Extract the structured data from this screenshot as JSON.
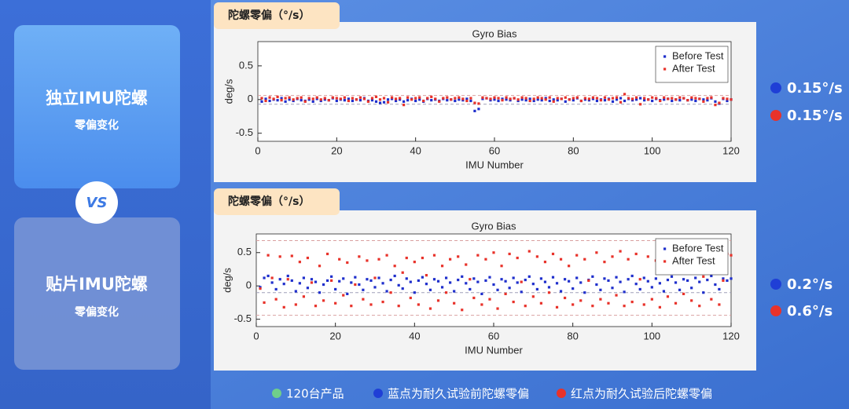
{
  "cards": [
    {
      "title": "独立IMU陀螺",
      "subtitle": "零偏变化"
    },
    {
      "title": "贴片IMU陀螺",
      "subtitle": "零偏变化"
    }
  ],
  "vs": "VS",
  "chart_data": [
    {
      "type": "scatter",
      "label": "陀螺零偏（°/s）",
      "title": "Gyro Bias",
      "xlabel": "IMU Number",
      "ylabel": "deg/s",
      "xlim": [
        0,
        120
      ],
      "xticks": [
        0,
        20,
        40,
        60,
        80,
        100,
        120
      ],
      "ylim": [
        -0.62,
        0.86
      ],
      "yticks": [
        -0.5,
        0,
        0.5
      ],
      "hlines": [
        {
          "value": 0.06,
          "color": "#d9a0a0"
        },
        {
          "value": -0.07,
          "color": "#a0a0b8"
        }
      ],
      "legend": "upper right",
      "x": [
        1,
        2,
        3,
        4,
        5,
        6,
        7,
        8,
        9,
        10,
        11,
        12,
        13,
        14,
        15,
        16,
        17,
        18,
        19,
        20,
        21,
        22,
        23,
        24,
        25,
        26,
        27,
        28,
        29,
        30,
        31,
        32,
        33,
        34,
        35,
        36,
        37,
        38,
        39,
        40,
        41,
        42,
        43,
        44,
        45,
        46,
        47,
        48,
        49,
        50,
        51,
        52,
        53,
        54,
        55,
        56,
        57,
        58,
        59,
        60,
        61,
        62,
        63,
        64,
        65,
        66,
        67,
        68,
        69,
        70,
        71,
        72,
        73,
        74,
        75,
        76,
        77,
        78,
        79,
        80,
        81,
        82,
        83,
        84,
        85,
        86,
        87,
        88,
        89,
        90,
        91,
        92,
        93,
        94,
        95,
        96,
        97,
        98,
        99,
        100,
        101,
        102,
        103,
        104,
        105,
        106,
        107,
        108,
        109,
        110,
        111,
        112,
        113,
        114,
        115,
        116,
        117,
        118,
        119,
        120
      ],
      "series": [
        {
          "name": "Before Test",
          "color": "#1f2fcc",
          "values": [
            -0.03,
            0.01,
            -0.02,
            0.0,
            -0.01,
            0.02,
            -0.03,
            0.0,
            -0.02,
            0.01,
            -0.01,
            -0.02,
            0.0,
            -0.03,
            0.01,
            -0.02,
            0.0,
            -0.01,
            0.02,
            -0.02,
            0.0,
            -0.01,
            0.01,
            -0.02,
            0.0,
            -0.01,
            0.02,
            -0.02,
            -0.01,
            -0.03,
            -0.05,
            -0.04,
            0.0,
            0.01,
            -0.02,
            0.0,
            -0.03,
            -0.01,
            0.01,
            -0.02,
            0.0,
            -0.03,
            0.01,
            -0.01,
            0.0,
            -0.02,
            0.01,
            -0.01,
            0.0,
            -0.02,
            0.0,
            -0.01,
            0.01,
            -0.02,
            -0.17,
            -0.14,
            0.01,
            0.02,
            -0.01,
            0.0,
            -0.02,
            0.01,
            0.0,
            -0.01,
            0.02,
            -0.02,
            0.0,
            -0.01,
            0.01,
            -0.02,
            0.0,
            -0.01,
            0.02,
            -0.02,
            0.0,
            -0.01,
            0.01,
            -0.03,
            0.0,
            -0.01,
            0.02,
            -0.02,
            0.0,
            -0.01,
            0.01,
            -0.02,
            0.0,
            -0.01,
            0.01,
            -0.03,
            0.0,
            0.02,
            -0.02,
            0.01,
            -0.01,
            0.0,
            0.02,
            -0.01,
            0.0,
            -0.02,
            0.01,
            -0.01,
            0.0,
            0.01,
            -0.02,
            0.0,
            -0.01,
            0.02,
            -0.01,
            0.0,
            -0.02,
            0.01,
            0.0,
            -0.01,
            0.02,
            -0.03,
            -0.06,
            0.01,
            -0.02,
            0.0
          ]
        },
        {
          "name": "After Test",
          "color": "#e8322a",
          "values": [
            0.02,
            -0.02,
            0.03,
            0.01,
            0.04,
            -0.01,
            0.02,
            0.03,
            0.0,
            0.02,
            0.03,
            -0.03,
            0.02,
            0.01,
            0.03,
            0.0,
            0.02,
            -0.01,
            0.03,
            0.02,
            0.01,
            0.03,
            -0.02,
            0.02,
            0.0,
            0.03,
            0.01,
            -0.03,
            0.02,
            0.04,
            0.0,
            0.02,
            -0.04,
            0.03,
            0.01,
            0.02,
            -0.08,
            0.03,
            0.0,
            0.02,
            0.03,
            -0.02,
            0.02,
            0.04,
            0.01,
            -0.03,
            0.02,
            0.03,
            0.0,
            0.02,
            0.03,
            0.01,
            -0.02,
            0.02,
            -0.05,
            -0.06,
            0.03,
            0.02,
            0.01,
            0.03,
            0.02,
            -0.01,
            0.03,
            0.01,
            0.02,
            0.0,
            0.03,
            0.02,
            -0.02,
            0.01,
            0.03,
            0.02,
            0.0,
            0.03,
            -0.03,
            0.02,
            0.01,
            0.03,
            0.0,
            0.02,
            0.03,
            -0.02,
            0.02,
            0.01,
            0.03,
            0.02,
            -0.01,
            0.03,
            0.0,
            0.02,
            0.03,
            -0.04,
            0.08,
            0.02,
            0.01,
            0.03,
            -0.07,
            0.02,
            0.0,
            0.03,
            0.02,
            -0.02,
            0.03,
            0.01,
            0.02,
            0.0,
            0.03,
            0.02,
            -0.01,
            0.03,
            0.02,
            0.01,
            -0.03,
            0.02,
            0.03,
            -0.08,
            -0.05,
            0.02,
            0.01,
            0.0
          ]
        }
      ]
    },
    {
      "type": "scatter",
      "label": "陀螺零偏（°/s）",
      "title": "Gyro Bias",
      "xlabel": "IMU Number",
      "ylabel": "deg/s",
      "xlim": [
        0,
        120
      ],
      "xticks": [
        0,
        20,
        40,
        60,
        80,
        100,
        120
      ],
      "ylim": [
        -0.61,
        0.78
      ],
      "yticks": [
        -0.5,
        0,
        0.5
      ],
      "hlines": [
        {
          "value": 0.68,
          "color": "#d9a0a0"
        },
        {
          "value": -0.1,
          "color": "#a0a0b8"
        },
        {
          "value": -0.44,
          "color": "#d9a0a0"
        }
      ],
      "legend": "upper right",
      "x": [
        1,
        2,
        3,
        4,
        5,
        6,
        7,
        8,
        9,
        10,
        11,
        12,
        13,
        14,
        15,
        16,
        17,
        18,
        19,
        20,
        21,
        22,
        23,
        24,
        25,
        26,
        27,
        28,
        29,
        30,
        31,
        32,
        33,
        34,
        35,
        36,
        37,
        38,
        39,
        40,
        41,
        42,
        43,
        44,
        45,
        46,
        47,
        48,
        49,
        50,
        51,
        52,
        53,
        54,
        55,
        56,
        57,
        58,
        59,
        60,
        61,
        62,
        63,
        64,
        65,
        66,
        67,
        68,
        69,
        70,
        71,
        72,
        73,
        74,
        75,
        76,
        77,
        78,
        79,
        80,
        81,
        82,
        83,
        84,
        85,
        86,
        87,
        88,
        89,
        90,
        91,
        92,
        93,
        94,
        95,
        96,
        97,
        98,
        99,
        100,
        101,
        102,
        103,
        104,
        105,
        106,
        107,
        108,
        109,
        110,
        111,
        112,
        113,
        114,
        115,
        116,
        117,
        118,
        119,
        120
      ],
      "series": [
        {
          "name": "Before Test",
          "color": "#1f2fcc",
          "values": [
            -0.02,
            0.12,
            0.15,
            0.05,
            -0.05,
            0.1,
            0.03,
            0.15,
            0.08,
            -0.08,
            0.04,
            0.12,
            -0.03,
            0.1,
            0.06,
            -0.1,
            0.02,
            0.08,
            0.14,
            -0.05,
            0.07,
            0.11,
            -0.12,
            0.05,
            0.13,
            0.02,
            -0.06,
            0.1,
            0.08,
            -0.02,
            0.12,
            0.04,
            -0.08,
            0.09,
            0.15,
            0.01,
            -0.04,
            0.11,
            0.06,
            -0.1,
            0.08,
            0.13,
            0.03,
            -0.06,
            0.1,
            0.07,
            -0.02,
            0.12,
            0.05,
            -0.08,
            0.09,
            0.14,
            0.04,
            -0.05,
            0.11,
            0.06,
            -0.12,
            0.08,
            0.13,
            0.02,
            -0.06,
            0.1,
            0.07,
            -0.03,
            0.12,
            0.05,
            -0.09,
            0.09,
            0.14,
            0.03,
            -0.05,
            0.11,
            0.06,
            -0.02,
            0.13,
            0.04,
            -0.08,
            0.1,
            0.07,
            -0.04,
            0.12,
            0.05,
            -0.1,
            0.09,
            0.14,
            0.02,
            -0.06,
            0.11,
            0.08,
            -0.03,
            0.13,
            0.06,
            -0.09,
            0.1,
            0.15,
            0.03,
            -0.05,
            0.12,
            0.07,
            -0.02,
            0.11,
            0.04,
            -0.08,
            0.09,
            0.14,
            0.05,
            -0.06,
            0.1,
            0.08,
            -0.03,
            0.12,
            0.06,
            -0.1,
            0.09,
            0.15,
            0.02,
            -0.05,
            0.11,
            0.08,
            0.11
          ]
        },
        {
          "name": "After Test",
          "color": "#e8322a",
          "values": [
            -0.04,
            -0.25,
            0.46,
            0.12,
            -0.2,
            0.44,
            -0.32,
            0.1,
            0.45,
            -0.28,
            0.36,
            -0.16,
            0.42,
            0.05,
            -0.3,
            0.3,
            -0.22,
            0.48,
            0.08,
            -0.26,
            0.4,
            -0.14,
            0.35,
            -0.3,
            0.02,
            0.44,
            -0.2,
            0.38,
            -0.28,
            0.12,
            0.4,
            -0.24,
            0.46,
            -0.1,
            0.3,
            -0.3,
            0.2,
            0.42,
            -0.18,
            0.36,
            -0.28,
            0.42,
            0.16,
            -0.34,
            0.46,
            -0.22,
            0.3,
            -0.1,
            0.4,
            -0.26,
            0.44,
            -0.36,
            0.32,
            0.1,
            -0.18,
            0.46,
            -0.28,
            0.4,
            -0.2,
            0.5,
            -0.34,
            0.3,
            -0.12,
            0.48,
            -0.24,
            0.42,
            0.06,
            -0.3,
            0.52,
            -0.16,
            0.44,
            -0.26,
            0.36,
            -0.1,
            0.48,
            -0.32,
            0.4,
            -0.18,
            0.3,
            -0.28,
            0.46,
            -0.22,
            0.4,
            0.08,
            -0.3,
            0.5,
            -0.2,
            0.36,
            -0.26,
            0.44,
            -0.14,
            0.52,
            -0.3,
            0.4,
            -0.24,
            0.48,
            0.1,
            -0.28,
            0.44,
            -0.2,
            0.38,
            -0.32,
            0.5,
            -0.16,
            0.42,
            -0.26,
            0.34,
            -0.12,
            0.46,
            -0.22,
            0.4,
            -0.3,
            0.14,
            0.44,
            -0.2,
            0.38,
            -0.28,
            0.08,
            0.48,
            0.46
          ]
        }
      ]
    }
  ],
  "side_stats": [
    {
      "text": "0.15°/s",
      "color": "#1f3fd6"
    },
    {
      "text": "0.15°/s",
      "color": "#e8322a"
    },
    {
      "text": "0.2°/s",
      "color": "#1f3fd6"
    },
    {
      "text": "0.6°/s",
      "color": "#e8322a"
    }
  ],
  "footer": [
    {
      "text": "120台产品",
      "color": "#6fcf8a"
    },
    {
      "text": "蓝点为耐久试验前陀螺零偏",
      "color": "#1f3fd6"
    },
    {
      "text": "红点为耐久试验后陀螺零偏",
      "color": "#e8322a"
    }
  ]
}
